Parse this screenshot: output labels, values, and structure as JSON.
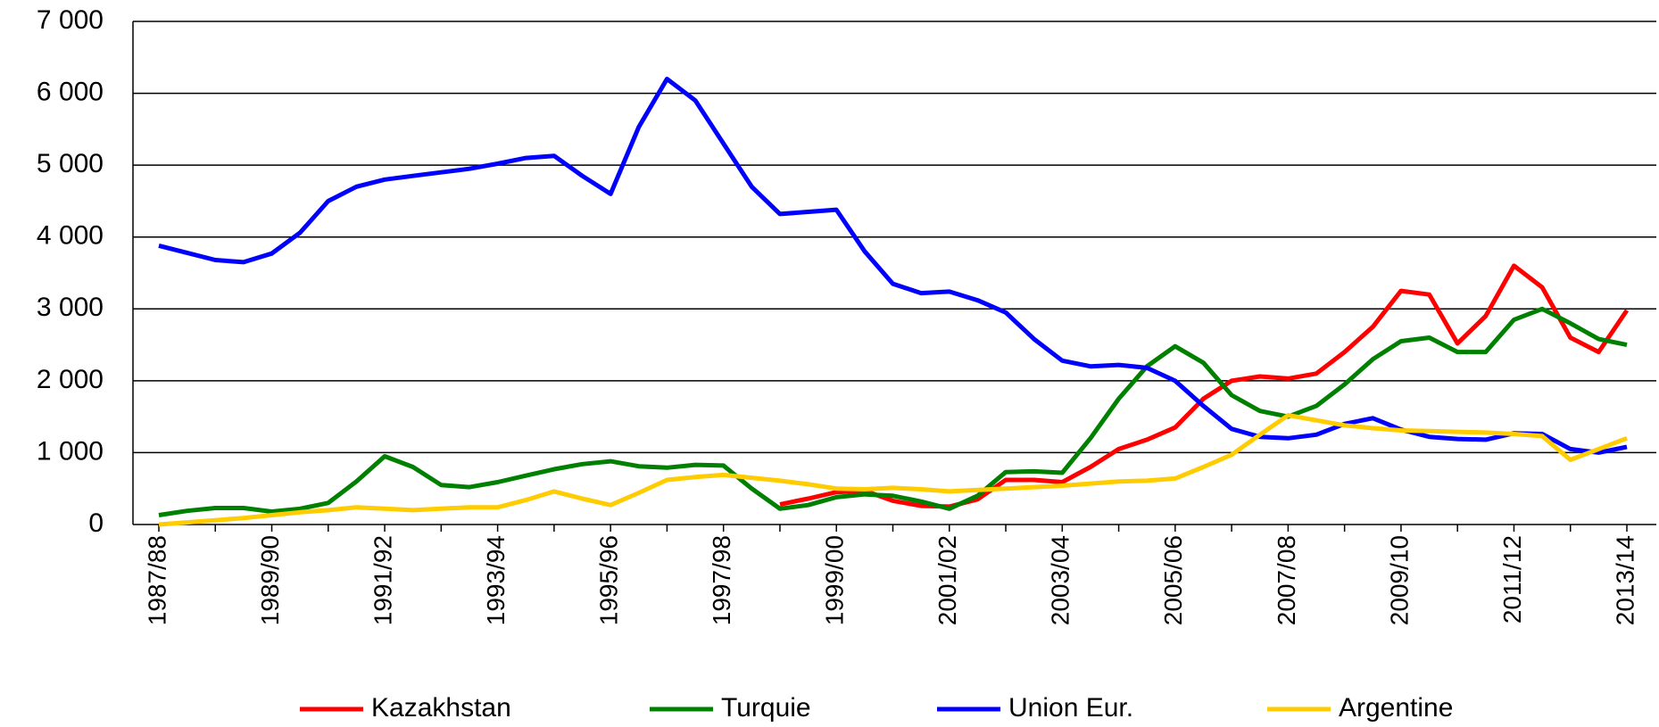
{
  "chart_data": {
    "type": "line",
    "categories": [
      "1987/88",
      null,
      null,
      null,
      "1989/90",
      null,
      null,
      null,
      "1991/92",
      null,
      null,
      null,
      "1993/94",
      null,
      null,
      null,
      "1995/96",
      null,
      null,
      null,
      "1997/98",
      null,
      null,
      null,
      "1999/00",
      null,
      null,
      null,
      "2001/02",
      null,
      null,
      null,
      "2003/04",
      null,
      null,
      null,
      "2005/06",
      null,
      null,
      null,
      "2007/08",
      null,
      null,
      null,
      "2009/10",
      null,
      null,
      null,
      "2011/12",
      null,
      null,
      null,
      "2013/14"
    ],
    "series": [
      {
        "name": "Kazakhstan",
        "color": "#ff0000",
        "values": [
          null,
          null,
          null,
          null,
          null,
          null,
          null,
          null,
          null,
          null,
          null,
          null,
          null,
          null,
          null,
          null,
          null,
          null,
          null,
          null,
          null,
          null,
          280,
          360,
          450,
          470,
          330,
          260,
          250,
          350,
          620,
          620,
          590,
          800,
          1050,
          1180,
          1350,
          1750,
          2000,
          2060,
          2030,
          2100,
          2400,
          2750,
          3250,
          3200,
          2520,
          2900,
          3600,
          3300,
          2600,
          2400,
          2980
        ]
      },
      {
        "name": "Turquie",
        "color": "#008000",
        "values": [
          130,
          190,
          230,
          230,
          180,
          220,
          300,
          600,
          950,
          800,
          550,
          520,
          590,
          680,
          770,
          840,
          880,
          810,
          790,
          830,
          820,
          500,
          220,
          270,
          380,
          420,
          400,
          320,
          220,
          400,
          730,
          740,
          720,
          1200,
          1750,
          2200,
          2480,
          2250,
          1800,
          1580,
          1500,
          1650,
          1950,
          2300,
          2550,
          2600,
          2400,
          2400,
          2850,
          3000,
          2800,
          2580,
          2500
        ]
      },
      {
        "name": "Union Eur.",
        "color": "#0000ff",
        "values": [
          3880,
          3780,
          3680,
          3650,
          3770,
          4060,
          4500,
          4700,
          4800,
          4850,
          4900,
          4950,
          5020,
          5100,
          5130,
          4850,
          4600,
          5530,
          6200,
          5900,
          5300,
          4700,
          4320,
          4350,
          4380,
          3800,
          3350,
          3220,
          3240,
          3120,
          2950,
          2580,
          2280,
          2200,
          2220,
          2180,
          2000,
          1650,
          1330,
          1220,
          1200,
          1250,
          1400,
          1480,
          1320,
          1220,
          1190,
          1180,
          1270,
          1260,
          1050,
          1000,
          1080
        ]
      },
      {
        "name": "Argentine",
        "color": "#ffcc00",
        "values": [
          0,
          30,
          60,
          90,
          130,
          170,
          200,
          240,
          220,
          200,
          220,
          240,
          240,
          340,
          460,
          360,
          270,
          440,
          620,
          660,
          690,
          650,
          610,
          560,
          500,
          490,
          510,
          490,
          460,
          480,
          500,
          520,
          540,
          570,
          600,
          610,
          640,
          800,
          970,
          1250,
          1520,
          1450,
          1380,
          1340,
          1310,
          1300,
          1290,
          1280,
          1260,
          1230,
          900,
          1050,
          1200
        ]
      }
    ],
    "ylim": [
      0,
      7000
    ],
    "yticks": [
      {
        "value": 0,
        "label": "0"
      },
      {
        "value": 1000,
        "label": "1 000"
      },
      {
        "value": 2000,
        "label": "2 000"
      },
      {
        "value": 3000,
        "label": "3 000"
      },
      {
        "value": 4000,
        "label": "4 000"
      },
      {
        "value": 5000,
        "label": "5 000"
      },
      {
        "value": 6000,
        "label": "6 000"
      },
      {
        "value": 7000,
        "label": "7 000"
      }
    ],
    "grid": true
  }
}
